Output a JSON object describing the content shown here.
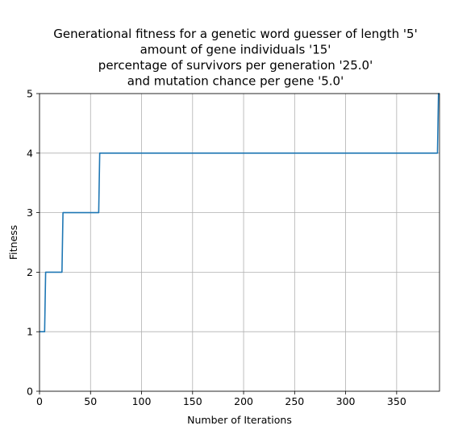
{
  "chart_data": {
    "type": "line",
    "title": [
      "Generational fitness for a genetic word guesser of length '5'",
      "amount of gene individuals '15'",
      "percentage of survivors per generation '25.0'",
      "and mutation chance per gene '5.0'"
    ],
    "xlabel": "Number of Iterations",
    "ylabel": "Fitness",
    "xlim": [
      0,
      392
    ],
    "ylim": [
      0,
      5
    ],
    "xticks": [
      0,
      50,
      100,
      150,
      200,
      250,
      300,
      350
    ],
    "yticks": [
      0,
      1,
      2,
      3,
      4,
      5
    ],
    "grid": true,
    "series": [
      {
        "color": "#1f77b4",
        "x": [
          0,
          5,
          6,
          22,
          23,
          58,
          59,
          390,
          391,
          392
        ],
        "y": [
          1,
          1,
          2,
          2,
          3,
          3,
          4,
          4,
          5,
          5
        ]
      }
    ]
  }
}
